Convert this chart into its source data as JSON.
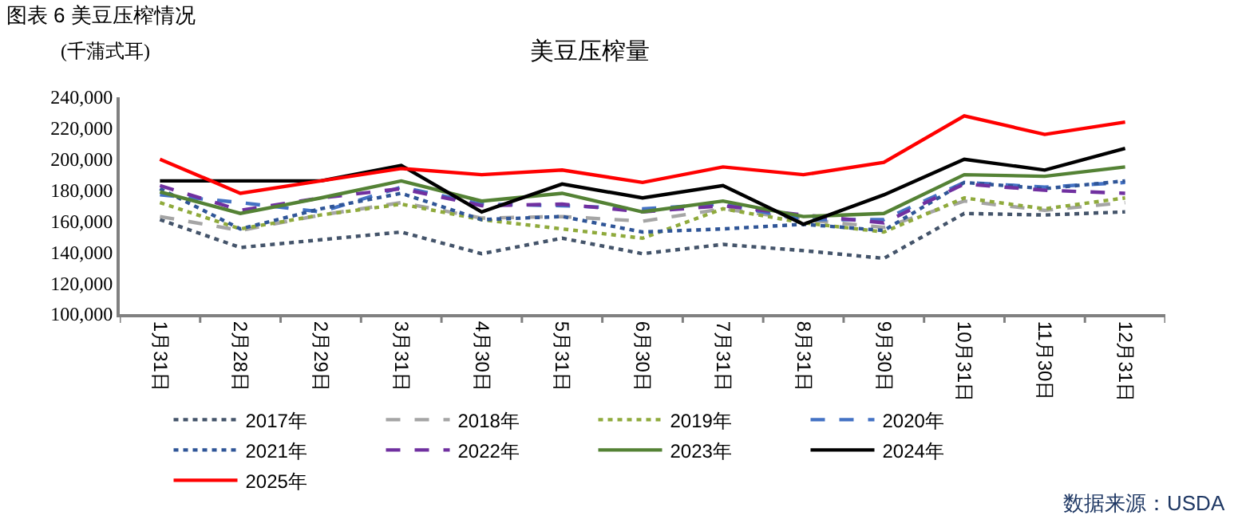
{
  "chart_data": {
    "type": "line",
    "title": "图表 6 美豆压榨情况",
    "subtitle": "美豆压榨量",
    "ylabel": "(千蒲式耳)",
    "annotations": [
      "数据来源：USDA"
    ],
    "categories": [
      "1月31日",
      "2月28日",
      "2月29日",
      "3月31日",
      "4月30日",
      "5月31日",
      "6月30日",
      "7月31日",
      "8月31日",
      "9月30日",
      "10月31日",
      "11月30日",
      "12月31日"
    ],
    "ylim": [
      100000,
      240000
    ],
    "yticks": [
      {
        "value": 100000,
        "label": "100,000"
      },
      {
        "value": 120000,
        "label": "120,000"
      },
      {
        "value": 140000,
        "label": "140,000"
      },
      {
        "value": 160000,
        "label": "160,000"
      },
      {
        "value": 180000,
        "label": "180,000"
      },
      {
        "value": 200000,
        "label": "200,000"
      },
      {
        "value": 220000,
        "label": "220,000"
      },
      {
        "value": 240000,
        "label": "240,000"
      }
    ],
    "grid": false,
    "legend": "bottom",
    "marker": "none",
    "series": [
      {
        "name": "2017年",
        "color": "#44546a",
        "line_style": "dotted",
        "values": [
          161000,
          143000,
          148000,
          153000,
          139000,
          149000,
          139000,
          145000,
          141000,
          136000,
          165000,
          164000,
          166000
        ]
      },
      {
        "name": "2018年",
        "color": "#a5a5a5",
        "line_style": "dashed",
        "values": [
          163000,
          154000,
          164000,
          172000,
          162000,
          163000,
          160000,
          168000,
          161000,
          156000,
          173000,
          167000,
          172000
        ]
      },
      {
        "name": "2019年",
        "color": "#8faa3c",
        "line_style": "dotted",
        "values": [
          172000,
          155000,
          164000,
          171000,
          161000,
          155000,
          149000,
          168000,
          159000,
          153000,
          175000,
          168000,
          175000
        ]
      },
      {
        "name": "2020年",
        "color": "#4472c4",
        "line_style": "dashed",
        "values": [
          177000,
          172000,
          166000,
          182000,
          171000,
          170000,
          168000,
          171000,
          161000,
          161000,
          185000,
          182000,
          185000
        ]
      },
      {
        "name": "2021年",
        "color": "#2f5597",
        "line_style": "dotted",
        "values": [
          181000,
          155000,
          168000,
          178000,
          161000,
          163000,
          153000,
          155000,
          158000,
          154000,
          185000,
          181000,
          186000
        ]
      },
      {
        "name": "2022年",
        "color": "#7030a0",
        "line_style": "dashed",
        "values": [
          183000,
          167000,
          175000,
          181000,
          170000,
          171000,
          166000,
          170000,
          164000,
          159000,
          184000,
          180000,
          178000
        ]
      },
      {
        "name": "2023年",
        "color": "#548235",
        "line_style": "solid",
        "values": [
          179000,
          165000,
          175000,
          186000,
          173000,
          178000,
          166000,
          173000,
          163000,
          165000,
          190000,
          189000,
          195000
        ]
      },
      {
        "name": "2024年",
        "color": "#000000",
        "line_style": "solid",
        "values": [
          186000,
          186000,
          186000,
          196000,
          166000,
          184000,
          175000,
          183000,
          158000,
          177000,
          200000,
          193000,
          207000
        ]
      },
      {
        "name": "2025年",
        "color": "#ff0000",
        "line_style": "solid",
        "values": [
          200000,
          178000,
          186000,
          194000,
          190000,
          193000,
          185000,
          195000,
          190000,
          198000,
          228000,
          216000,
          224000
        ]
      }
    ]
  }
}
